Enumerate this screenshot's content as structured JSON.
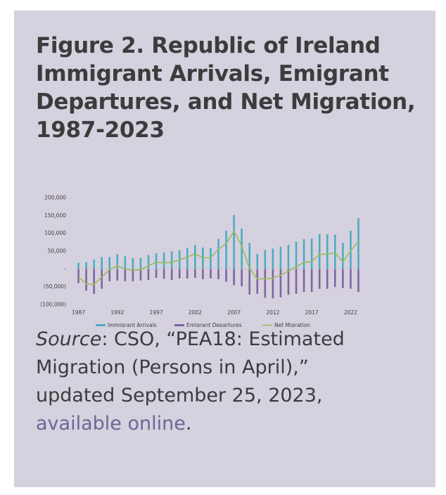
{
  "title": {
    "line1": "Figure 2. Republic of Ireland",
    "line2": "Immigrant Arrivals, Emigrant",
    "line3": "Departures, and Net Migration,",
    "line4": "1987-2023"
  },
  "source": {
    "label": "Source",
    "line1_rest": ": CSO, “PEA18: Estimated",
    "line2": "Migration (Persons in April),”",
    "line3": "updated September 25, 2023,",
    "link_text": "available online",
    "end": "."
  },
  "colors": {
    "card": "#d6d1de",
    "arrivals": "#4bacc6",
    "departures": "#8064a2",
    "net": "#9bbb59",
    "link": "#6c6796"
  },
  "chart_data": {
    "type": "bar",
    "title": "",
    "xlabel": "",
    "ylabel": "",
    "ylim": [
      -100000,
      200000
    ],
    "y_ticks": [
      200000,
      150000,
      100000,
      50000,
      0,
      -50000,
      -100000
    ],
    "y_tick_labels": [
      "200,000",
      "150,000",
      "100,000",
      "50,000",
      "-",
      "(50,000)",
      "(100,000)"
    ],
    "x_tick_labels": [
      "1987",
      "1992",
      "1997",
      "2002",
      "2007",
      "2012",
      "2017",
      "2022"
    ],
    "categories": [
      1987,
      1988,
      1989,
      1990,
      1991,
      1992,
      1993,
      1994,
      1995,
      1996,
      1997,
      1998,
      1999,
      2000,
      2001,
      2002,
      2003,
      2004,
      2005,
      2006,
      2007,
      2008,
      2009,
      2010,
      2011,
      2012,
      2013,
      2014,
      2015,
      2016,
      2017,
      2018,
      2019,
      2020,
      2021,
      2022,
      2023
    ],
    "legend_position": "bottom",
    "series": [
      {
        "name": "Immigrant Arrivals",
        "type": "bar",
        "values": [
          17000,
          19000,
          26000,
          33000,
          33000,
          41000,
          35000,
          30000,
          31000,
          39000,
          44000,
          46000,
          49000,
          52000,
          59000,
          67000,
          60000,
          58000,
          84000,
          107000,
          151000,
          113000,
          73000,
          42000,
          53000,
          57000,
          62000,
          67000,
          76000,
          83000,
          85000,
          97000,
          97000,
          96000,
          73000,
          107000,
          142000
        ]
      },
      {
        "name": "Emigrant Departures",
        "type": "bar",
        "values": [
          -40000,
          -61000,
          -70000,
          -56000,
          -35000,
          -33000,
          -35000,
          -35000,
          -33000,
          -31000,
          -25000,
          -28000,
          -31000,
          -27000,
          -27000,
          -25000,
          -29000,
          -27000,
          -29000,
          -36000,
          -46000,
          -49000,
          -72000,
          -70000,
          -81000,
          -83000,
          -80000,
          -73000,
          -70000,
          -65000,
          -65000,
          -56000,
          -56000,
          -51000,
          -54000,
          -56000,
          -65000
        ]
      },
      {
        "name": "Net Migration",
        "type": "line",
        "values": [
          -23000,
          -42000,
          -44000,
          -23000,
          -2000,
          8000,
          0,
          -5000,
          -2000,
          8000,
          19000,
          17000,
          18000,
          25000,
          33000,
          42000,
          31000,
          31000,
          55000,
          71000,
          105000,
          64000,
          1000,
          -28000,
          -28000,
          -26000,
          -18000,
          -6000,
          6000,
          18000,
          20000,
          41000,
          41000,
          45000,
          19000,
          51000,
          77000
        ]
      }
    ]
  }
}
